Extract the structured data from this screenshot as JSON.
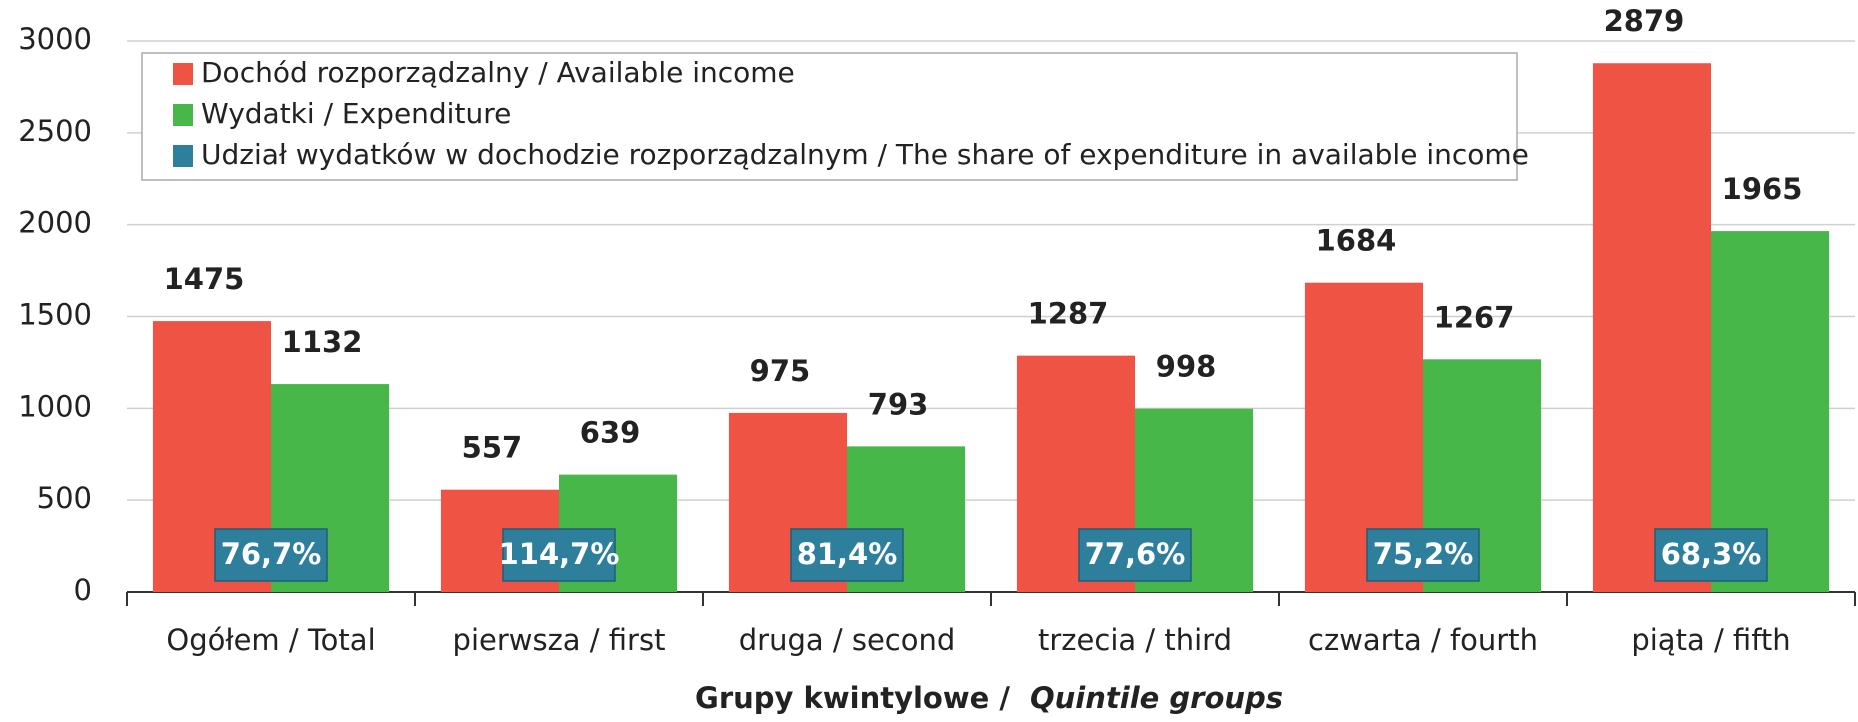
{
  "chart_data": {
    "type": "bar",
    "categories": [
      "Ogółem / Total",
      "pierwsza / first",
      "druga / second",
      "trzecia / third",
      "czwarta / fourth",
      "piąta / fifth"
    ],
    "series": [
      {
        "name": "Dochód rozporządzalny / Available income",
        "color": "#ef5344",
        "values": [
          1475,
          557,
          975,
          1287,
          1684,
          2879
        ]
      },
      {
        "name": "Wydatki / Expenditure",
        "color": "#47b749",
        "values": [
          1132,
          639,
          793,
          998,
          1267,
          1965
        ]
      },
      {
        "name": "Udział wydatków w dochodzie rozporządzalnym / The share of expenditure in available income",
        "color": "#2e7f9c",
        "values": [
          76.7,
          114.7,
          81.4,
          77.6,
          75.2,
          68.3
        ],
        "value_labels": [
          "76,7%",
          "114,7%",
          "81,4%",
          "77,6%",
          "75,2%",
          "68,3%"
        ]
      }
    ],
    "x_label": "Grupy kwintylowe /",
    "x_label_italic": "Quintile groups",
    "ylim": [
      0,
      3000
    ],
    "yticks": [
      0,
      500,
      1000,
      1500,
      2000,
      2500,
      3000
    ],
    "grid": true,
    "legend": "top-left"
  }
}
